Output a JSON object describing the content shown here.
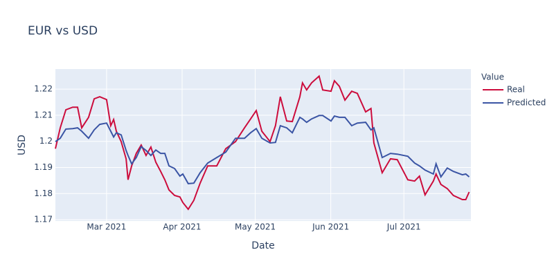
{
  "chart_data": {
    "type": "line",
    "title": "EUR vs USD",
    "x_label": "Date",
    "y_label": "USD",
    "legend_title": "Value",
    "x": [
      39.0,
      41.0,
      43.3,
      46.1,
      48.1,
      49.8,
      52.6,
      54.9,
      57.2,
      60.0,
      61.7,
      62.9,
      64.0,
      66.0,
      68.0,
      68.8,
      70.3,
      72.2,
      74.2,
      76.2,
      78.2,
      80.2,
      82.2,
      83.9,
      85.6,
      87.9,
      90.1,
      91.3,
      93.5,
      95.8,
      98.4,
      101.5,
      105.2,
      108.9,
      112.9,
      116.6,
      119.1,
      121.4,
      123.7,
      127.1,
      129.3,
      131.3,
      133.9,
      136.2,
      139.3,
      140.4,
      142.1,
      144.1,
      147.2,
      148.7,
      152.1,
      153.5,
      155.5,
      157.8,
      160.6,
      162.9,
      166.3,
      168.5,
      169.7,
      173.1,
      176.5,
      179.3,
      183.6,
      186.4,
      188.4,
      190.7,
      194.1,
      195.2,
      197.2,
      199.8,
      202.3,
      206.0,
      207.4,
      208.8
    ],
    "series": [
      {
        "name": "Real",
        "color": "#cc0c3c",
        "values": [
          1.1972,
          1.2052,
          1.2121,
          1.2131,
          1.2131,
          1.2052,
          1.2092,
          1.2163,
          1.2171,
          1.216,
          1.206,
          1.2084,
          1.2039,
          1.1999,
          1.1933,
          1.1853,
          1.1906,
          1.1954,
          1.1986,
          1.1946,
          1.1978,
          1.192,
          1.1885,
          1.1853,
          1.1814,
          1.1793,
          1.1787,
          1.1766,
          1.174,
          1.1774,
          1.184,
          1.1906,
          1.1906,
          1.1972,
          1.1999,
          1.2052,
          1.2086,
          1.2118,
          1.2039,
          1.1999,
          1.206,
          1.2171,
          1.2078,
          1.2076,
          1.2171,
          1.2224,
          1.2197,
          1.2224,
          1.225,
          1.2197,
          1.2192,
          1.2232,
          1.2211,
          1.2158,
          1.2192,
          1.2184,
          1.2113,
          1.2126,
          1.1994,
          1.188,
          1.1933,
          1.193,
          1.1853,
          1.1848,
          1.1867,
          1.1795,
          1.1848,
          1.1875,
          1.1835,
          1.1819,
          1.1793,
          1.1777,
          1.1777,
          1.1806
        ]
      },
      {
        "name": "Predicted",
        "color": "#3a54a4",
        "values": [
          1.1999,
          1.2012,
          1.2047,
          1.2049,
          1.2052,
          1.2039,
          1.2012,
          1.2044,
          1.2065,
          1.207,
          1.2039,
          1.2017,
          1.2033,
          1.2025,
          1.1965,
          1.1946,
          1.1914,
          1.1938,
          1.198,
          1.1965,
          1.1946,
          1.1967,
          1.1954,
          1.1954,
          1.1906,
          1.1896,
          1.1867,
          1.1875,
          1.1838,
          1.184,
          1.188,
          1.1917,
          1.1938,
          1.1959,
          1.2012,
          1.2012,
          1.2033,
          1.2049,
          1.2012,
          1.1994,
          1.1996,
          1.206,
          1.2052,
          1.2033,
          1.2092,
          1.2086,
          1.2073,
          1.2086,
          1.2099,
          1.2099,
          1.2078,
          1.2097,
          1.2092,
          1.2092,
          1.206,
          1.207,
          1.2073,
          1.2044,
          1.2052,
          1.1938,
          1.1954,
          1.1951,
          1.1943,
          1.1917,
          1.1906,
          1.189,
          1.1875,
          1.1914,
          1.1864,
          1.1898,
          1.1885,
          1.1872,
          1.1875,
          1.1864
        ]
      }
    ],
    "xlim": [
      39,
      209.5
    ],
    "ylim": [
      1.1695,
      1.2277
    ],
    "xticks": [
      {
        "value": 60,
        "label": "Mar 2021"
      },
      {
        "value": 91,
        "label": "Apr 2021"
      },
      {
        "value": 121,
        "label": "May 2021"
      },
      {
        "value": 152,
        "label": "Jun 2021"
      },
      {
        "value": 182,
        "label": "Jul 2021"
      }
    ],
    "yticks": [
      1.17,
      1.18,
      1.19,
      1.2,
      1.21,
      1.22
    ],
    "grid": true
  }
}
